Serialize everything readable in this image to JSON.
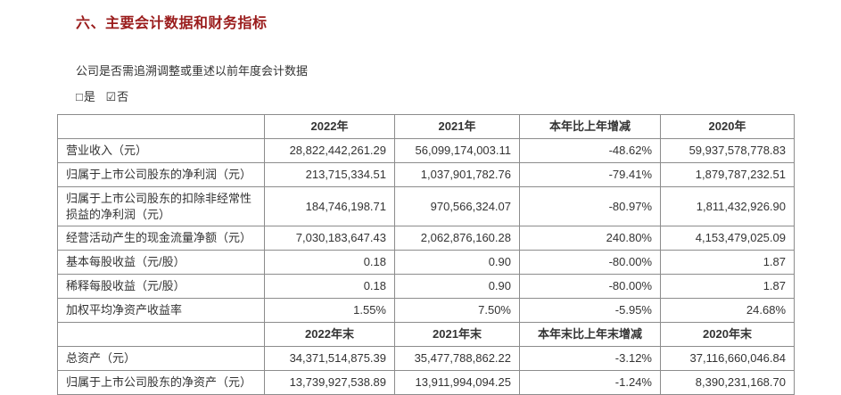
{
  "colors": {
    "title": "#9a1c1c",
    "text": "#333333",
    "border": "#8c8c8c",
    "bg": "#ffffff"
  },
  "title": "六、主要会计数据和财务指标",
  "subtitle": "公司是否需追溯调整或重述以前年度会计数据",
  "options": {
    "yes_glyph": "□",
    "yes_label": "是",
    "no_glyph": "☑",
    "no_label": "否"
  },
  "table": {
    "rows": [
      {
        "type": "header",
        "cells": [
          "",
          "2022年",
          "2021年",
          "本年比上年增减",
          "2020年"
        ]
      },
      {
        "type": "data",
        "cells": [
          "营业收入（元）",
          "28,822,442,261.29",
          "56,099,174,003.11",
          "-48.62%",
          "59,937,578,778.83"
        ]
      },
      {
        "type": "data",
        "cells": [
          "归属于上市公司股东的净利润（元）",
          "213,715,334.51",
          "1,037,901,782.76",
          "-79.41%",
          "1,879,787,232.51"
        ]
      },
      {
        "type": "data",
        "cells": [
          "归属于上市公司股东的扣除非经常性损益的净利润（元）",
          "184,746,198.71",
          "970,566,324.07",
          "-80.97%",
          "1,811,432,926.90"
        ]
      },
      {
        "type": "data",
        "cells": [
          "经营活动产生的现金流量净额（元）",
          "7,030,183,647.43",
          "2,062,876,160.28",
          "240.80%",
          "4,153,479,025.09"
        ]
      },
      {
        "type": "data",
        "cells": [
          "基本每股收益（元/股）",
          "0.18",
          "0.90",
          "-80.00%",
          "1.87"
        ]
      },
      {
        "type": "data",
        "cells": [
          "稀释每股收益（元/股）",
          "0.18",
          "0.90",
          "-80.00%",
          "1.87"
        ]
      },
      {
        "type": "data",
        "cells": [
          "加权平均净资产收益率",
          "1.55%",
          "7.50%",
          "-5.95%",
          "24.68%"
        ]
      },
      {
        "type": "header",
        "cells": [
          "",
          "2022年末",
          "2021年末",
          "本年末比上年末增减",
          "2020年末"
        ]
      },
      {
        "type": "data",
        "cells": [
          "总资产（元）",
          "34,371,514,875.39",
          "35,477,788,862.22",
          "-3.12%",
          "37,116,660,046.84"
        ]
      },
      {
        "type": "data",
        "cells": [
          "归属于上市公司股东的净资产（元）",
          "13,739,927,538.89",
          "13,911,994,094.25",
          "-1.24%",
          "8,390,231,168.70"
        ]
      }
    ]
  }
}
